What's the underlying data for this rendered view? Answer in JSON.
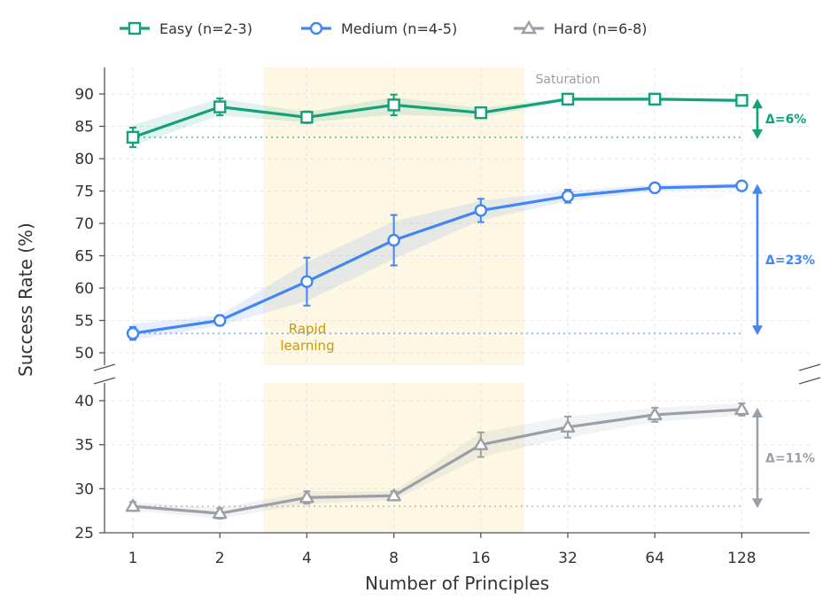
{
  "chart_data": {
    "type": "line",
    "xlabel": "Number of Principles",
    "ylabel": "Success Rate (%)",
    "categories": [
      "1",
      "2",
      "4",
      "8",
      "16",
      "32",
      "64",
      "128"
    ],
    "axis_break": true,
    "upper_panel": {
      "ylim": [
        48,
        93
      ],
      "ticks": [
        50,
        55,
        60,
        65,
        70,
        75,
        80,
        85,
        90
      ]
    },
    "lower_panel": {
      "ylim": [
        25,
        42
      ],
      "ticks": [
        25,
        30,
        35,
        40
      ]
    },
    "series": [
      {
        "name": "Easy (n=2-3)",
        "panel": "upper",
        "color": "#13a07a",
        "marker": "square",
        "values": [
          83.3,
          88.0,
          86.4,
          88.3,
          87.1,
          89.2,
          89.2,
          89.0
        ],
        "error": [
          1.5,
          1.3,
          0.9,
          1.6,
          0.7,
          0.3,
          0.3,
          0.3
        ],
        "band_low": [
          82.0,
          86.7,
          85.6,
          86.8,
          86.4,
          88.9,
          88.9,
          88.7
        ],
        "band_high": [
          85.2,
          89.3,
          87.2,
          89.5,
          87.8,
          89.5,
          89.5,
          89.3
        ]
      },
      {
        "name": "Medium (n=4-5)",
        "panel": "upper",
        "color": "#4286f4",
        "marker": "circle",
        "values": [
          53.0,
          55.0,
          61.0,
          67.4,
          72.0,
          74.2,
          75.5,
          75.8
        ],
        "error": [
          1.0,
          0.8,
          3.7,
          3.9,
          1.8,
          1.0,
          0.5,
          0.4
        ],
        "band_low": [
          52.0,
          54.2,
          58.0,
          64.5,
          70.5,
          73.4,
          75.0,
          75.4
        ],
        "band_high": [
          54.5,
          55.8,
          64.0,
          70.3,
          73.5,
          75.0,
          76.0,
          76.2
        ]
      },
      {
        "name": "Hard (n=6-8)",
        "panel": "lower",
        "color": "#9ba0a8",
        "marker": "triangle",
        "values": [
          28.0,
          27.2,
          29.0,
          29.2,
          35.0,
          37.0,
          38.4,
          39.0
        ],
        "error": [
          0.5,
          0.6,
          0.7,
          0.5,
          1.4,
          1.2,
          0.8,
          0.7
        ],
        "band_low": [
          27.5,
          26.6,
          28.3,
          28.7,
          33.6,
          35.8,
          37.6,
          38.3
        ],
        "band_high": [
          28.5,
          27.8,
          29.7,
          29.7,
          36.4,
          38.2,
          39.2,
          39.7
        ]
      }
    ],
    "baselines": [
      {
        "series": "Easy (n=2-3)",
        "y": 83.3
      },
      {
        "series": "Medium (n=4-5)",
        "y": 53.0
      },
      {
        "series": "Hard (n=6-8)",
        "y": 28.0
      }
    ],
    "highlight_region": {
      "from": 1.5,
      "to": 4.5,
      "color": "#fdf7e3"
    },
    "annotations": {
      "saturation": "Saturation",
      "rapid_1": "Rapid",
      "rapid_2": "learning"
    },
    "deltas": [
      {
        "label": "Δ=6%",
        "from": 83.3,
        "to": 89.0,
        "panel": "upper",
        "color": "#13a07a"
      },
      {
        "label": "Δ=23%",
        "from": 53.0,
        "to": 75.8,
        "panel": "upper",
        "color": "#4286f4"
      },
      {
        "label": "Δ=11%",
        "from": 28.0,
        "to": 39.0,
        "panel": "lower",
        "color": "#9ba0a8"
      }
    ]
  }
}
